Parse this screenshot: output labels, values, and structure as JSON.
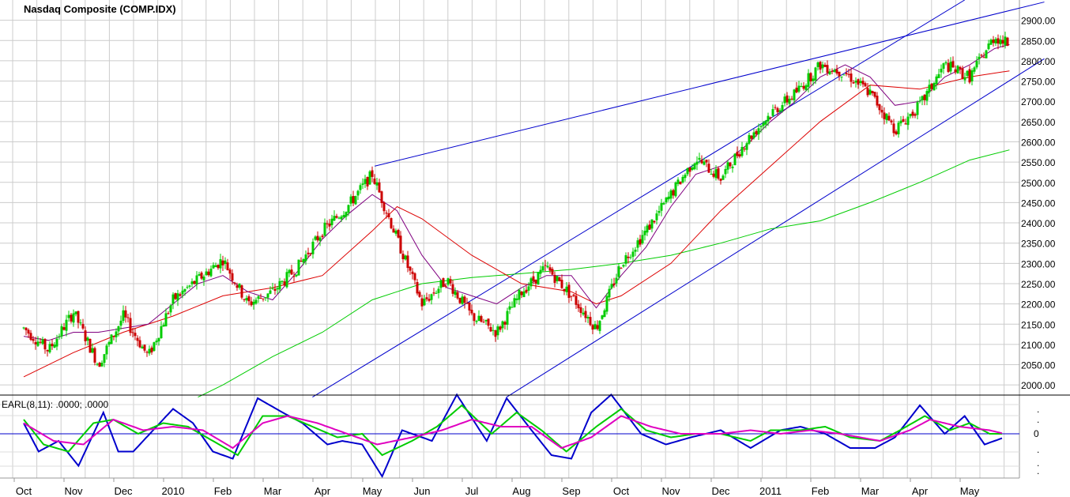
{
  "chart_data": [
    {
      "type": "candlestick",
      "title": "Nasdaq Composite (COMP.IDX)",
      "ylim": [
        1975,
        2950
      ],
      "y_ticks": [
        "2000.00",
        "2050.00",
        "2100.00",
        "2150.00",
        "2200.00",
        "2250.00",
        "2300.00",
        "2350.00",
        "2400.00",
        "2450.00",
        "2500.00",
        "2550.00",
        "2600.00",
        "2650.00",
        "2700.00",
        "2750.00",
        "2800.00",
        "2850.00",
        "2900.00"
      ],
      "x_labels": [
        "Oct",
        "Nov",
        "Dec",
        "2010",
        "Feb",
        "Mar",
        "Apr",
        "May",
        "Jun",
        "Jul",
        "Aug",
        "Sep",
        "Oct",
        "Nov",
        "Dec",
        "2011",
        "Feb",
        "Mar",
        "Apr",
        "May"
      ],
      "grid": true,
      "colors": {
        "up": "#00cc00",
        "down": "#cc0000",
        "ma_short": "#800080",
        "ma_mid": "#dd0000",
        "ma_long": "#00cc00",
        "trend": "#0000cc"
      },
      "price_points": [
        [
          0,
          2140
        ],
        [
          0.5,
          2085
        ],
        [
          1,
          2180
        ],
        [
          1.5,
          2050
        ],
        [
          2,
          2170
        ],
        [
          2.5,
          2070
        ],
        [
          3,
          2210
        ],
        [
          3.5,
          2260
        ],
        [
          4,
          2310
        ],
        [
          4.5,
          2200
        ],
        [
          5,
          2230
        ],
        [
          5.5,
          2290
        ],
        [
          6,
          2380
        ],
        [
          6.5,
          2440
        ],
        [
          7,
          2520
        ],
        [
          7.5,
          2360
        ],
        [
          8,
          2200
        ],
        [
          8.5,
          2260
        ],
        [
          9,
          2170
        ],
        [
          9.5,
          2130
        ],
        [
          10,
          2230
        ],
        [
          10.5,
          2290
        ],
        [
          11,
          2220
        ],
        [
          11.5,
          2140
        ],
        [
          12,
          2300
        ],
        [
          12.5,
          2380
        ],
        [
          13,
          2470
        ],
        [
          13.5,
          2560
        ],
        [
          14,
          2510
        ],
        [
          14.5,
          2600
        ],
        [
          15,
          2670
        ],
        [
          15.5,
          2720
        ],
        [
          16,
          2790
        ],
        [
          16.5,
          2770
        ],
        [
          17,
          2720
        ],
        [
          17.5,
          2630
        ],
        [
          18,
          2690
        ],
        [
          18.5,
          2790
        ],
        [
          19,
          2760
        ],
        [
          19.5,
          2860
        ],
        [
          19.8,
          2840
        ]
      ],
      "ma_short_points": [
        [
          0,
          2120
        ],
        [
          0.5,
          2110
        ],
        [
          1,
          2130
        ],
        [
          1.5,
          2130
        ],
        [
          2,
          2140
        ],
        [
          2.5,
          2150
        ],
        [
          3,
          2200
        ],
        [
          3.5,
          2250
        ],
        [
          4,
          2270
        ],
        [
          4.5,
          2230
        ],
        [
          5,
          2210
        ],
        [
          5.5,
          2280
        ],
        [
          6,
          2360
        ],
        [
          6.5,
          2420
        ],
        [
          7,
          2470
        ],
        [
          7.5,
          2430
        ],
        [
          8,
          2320
        ],
        [
          8.5,
          2240
        ],
        [
          9,
          2220
        ],
        [
          9.5,
          2200
        ],
        [
          10,
          2240
        ],
        [
          10.5,
          2270
        ],
        [
          11,
          2270
        ],
        [
          11.5,
          2190
        ],
        [
          12,
          2270
        ],
        [
          12.5,
          2340
        ],
        [
          13,
          2440
        ],
        [
          13.5,
          2520
        ],
        [
          14,
          2540
        ],
        [
          14.5,
          2590
        ],
        [
          15,
          2650
        ],
        [
          15.5,
          2700
        ],
        [
          16,
          2760
        ],
        [
          16.5,
          2790
        ],
        [
          17,
          2760
        ],
        [
          17.5,
          2690
        ],
        [
          18,
          2700
        ],
        [
          18.5,
          2760
        ],
        [
          19,
          2790
        ],
        [
          19.5,
          2830
        ],
        [
          19.8,
          2840
        ]
      ],
      "ma_mid_points": [
        [
          0,
          2020
        ],
        [
          1,
          2080
        ],
        [
          2,
          2130
        ],
        [
          3,
          2170
        ],
        [
          4,
          2220
        ],
        [
          5,
          2240
        ],
        [
          6,
          2270
        ],
        [
          7,
          2380
        ],
        [
          7.5,
          2440
        ],
        [
          8,
          2410
        ],
        [
          9,
          2320
        ],
        [
          10,
          2250
        ],
        [
          11,
          2230
        ],
        [
          11.5,
          2200
        ],
        [
          12,
          2220
        ],
        [
          13,
          2300
        ],
        [
          14,
          2430
        ],
        [
          15,
          2540
        ],
        [
          16,
          2650
        ],
        [
          17,
          2740
        ],
        [
          18,
          2730
        ],
        [
          19,
          2760
        ],
        [
          19.8,
          2775
        ]
      ],
      "ma_long_points": [
        [
          3.5,
          1970
        ],
        [
          4,
          2000
        ],
        [
          5,
          2070
        ],
        [
          6,
          2130
        ],
        [
          7,
          2210
        ],
        [
          7.5,
          2230
        ],
        [
          8,
          2250
        ],
        [
          9,
          2265
        ],
        [
          10,
          2275
        ],
        [
          11,
          2285
        ],
        [
          12,
          2300
        ],
        [
          13,
          2320
        ],
        [
          14,
          2350
        ],
        [
          15,
          2385
        ],
        [
          16,
          2405
        ],
        [
          17,
          2450
        ],
        [
          18,
          2500
        ],
        [
          19,
          2555
        ],
        [
          19.8,
          2580
        ]
      ],
      "trend_lines": [
        [
          [
            7.05,
            2540
          ],
          [
            20.5,
            2945
          ]
        ],
        [
          [
            5.8,
            1970
          ],
          [
            18.9,
            2950
          ]
        ],
        [
          [
            9.7,
            1970
          ],
          [
            20.5,
            2805
          ]
        ]
      ]
    },
    {
      "type": "line",
      "title": "EARL(8,11): .0000; .0000",
      "y_tick_labels": [
        ".",
        ".",
        "0",
        ".",
        ".",
        "."
      ],
      "series": [
        {
          "color": "#0000cc",
          "points": [
            [
              0,
              0.3
            ],
            [
              0.3,
              -0.5
            ],
            [
              0.7,
              -0.2
            ],
            [
              1.1,
              -0.9
            ],
            [
              1.6,
              0.6
            ],
            [
              1.9,
              -0.5
            ],
            [
              2.2,
              -0.5
            ],
            [
              2.6,
              0.1
            ],
            [
              3,
              0.7
            ],
            [
              3.4,
              0.3
            ],
            [
              3.8,
              -0.5
            ],
            [
              4.2,
              -0.7
            ],
            [
              4.7,
              1.0
            ],
            [
              5.2,
              0.6
            ],
            [
              5.6,
              0.3
            ],
            [
              6.1,
              -0.3
            ],
            [
              6.4,
              -0.2
            ],
            [
              6.8,
              -0.3
            ],
            [
              7.2,
              -1.2
            ],
            [
              7.6,
              0.1
            ],
            [
              8.2,
              -0.2
            ],
            [
              8.7,
              1.1
            ],
            [
              9.3,
              -0.2
            ],
            [
              9.7,
              1.0
            ],
            [
              10.2,
              0.1
            ],
            [
              10.6,
              -0.6
            ],
            [
              11,
              -0.7
            ],
            [
              11.4,
              0.6
            ],
            [
              11.8,
              1.1
            ],
            [
              12.4,
              0.0
            ],
            [
              12.9,
              -0.3
            ],
            [
              13.4,
              -0.1
            ],
            [
              14,
              0.1
            ],
            [
              14.6,
              -0.4
            ],
            [
              15.2,
              0.1
            ],
            [
              15.6,
              0.2
            ],
            [
              16.1,
              0.0
            ],
            [
              16.6,
              -0.4
            ],
            [
              17.1,
              -0.4
            ],
            [
              17.5,
              -0.1
            ],
            [
              18,
              0.8
            ],
            [
              18.5,
              0.0
            ],
            [
              18.9,
              0.5
            ],
            [
              19.3,
              -0.3
            ],
            [
              19.7,
              -0.1
            ]
          ]
        },
        {
          "color": "#00cc00",
          "points": [
            [
              0,
              0.4
            ],
            [
              0.4,
              -0.3
            ],
            [
              0.9,
              -0.5
            ],
            [
              1.4,
              0.3
            ],
            [
              1.8,
              0.4
            ],
            [
              2.3,
              0.0
            ],
            [
              2.8,
              0.3
            ],
            [
              3.3,
              0.2
            ],
            [
              3.8,
              -0.2
            ],
            [
              4.3,
              -0.6
            ],
            [
              4.8,
              0.5
            ],
            [
              5.3,
              0.5
            ],
            [
              5.8,
              0.2
            ],
            [
              6.3,
              -0.1
            ],
            [
              6.8,
              0.0
            ],
            [
              7.2,
              -0.6
            ],
            [
              7.8,
              -0.2
            ],
            [
              8.3,
              0.2
            ],
            [
              8.8,
              0.8
            ],
            [
              9.4,
              0.0
            ],
            [
              9.9,
              0.6
            ],
            [
              10.4,
              0.1
            ],
            [
              10.9,
              -0.5
            ],
            [
              11.5,
              0.2
            ],
            [
              12,
              0.7
            ],
            [
              12.5,
              0.1
            ],
            [
              13,
              -0.1
            ],
            [
              13.5,
              0.0
            ],
            [
              14,
              0.0
            ],
            [
              14.6,
              -0.2
            ],
            [
              15,
              0.1
            ],
            [
              15.6,
              0.1
            ],
            [
              16.1,
              0.2
            ],
            [
              16.6,
              -0.1
            ],
            [
              17.2,
              -0.2
            ],
            [
              17.6,
              0.1
            ],
            [
              18.1,
              0.5
            ],
            [
              18.6,
              0.1
            ],
            [
              19,
              0.3
            ],
            [
              19.4,
              0.0
            ],
            [
              19.7,
              0.0
            ]
          ]
        },
        {
          "color": "#e000c0",
          "points": [
            [
              0,
              0.3
            ],
            [
              0.6,
              -0.2
            ],
            [
              1.2,
              -0.3
            ],
            [
              1.8,
              0.4
            ],
            [
              2.4,
              0.1
            ],
            [
              3,
              0.2
            ],
            [
              3.6,
              0.1
            ],
            [
              4.2,
              -0.4
            ],
            [
              4.8,
              0.3
            ],
            [
              5.3,
              0.5
            ],
            [
              5.9,
              0.3
            ],
            [
              6.5,
              0.0
            ],
            [
              7.1,
              -0.3
            ],
            [
              7.8,
              -0.1
            ],
            [
              8.4,
              0.1
            ],
            [
              9,
              0.4
            ],
            [
              9.6,
              0.2
            ],
            [
              10.2,
              0.2
            ],
            [
              10.8,
              -0.4
            ],
            [
              11.4,
              -0.1
            ],
            [
              12,
              0.5
            ],
            [
              12.6,
              0.2
            ],
            [
              13.2,
              0.0
            ],
            [
              14,
              0.0
            ],
            [
              14.6,
              0.1
            ],
            [
              15.2,
              0.0
            ],
            [
              15.8,
              0.1
            ],
            [
              16.4,
              0.0
            ],
            [
              17.2,
              -0.2
            ],
            [
              17.8,
              0.1
            ],
            [
              18.2,
              0.4
            ],
            [
              18.8,
              0.2
            ],
            [
              19.4,
              0.1
            ],
            [
              19.7,
              0.0
            ]
          ]
        }
      ]
    }
  ]
}
